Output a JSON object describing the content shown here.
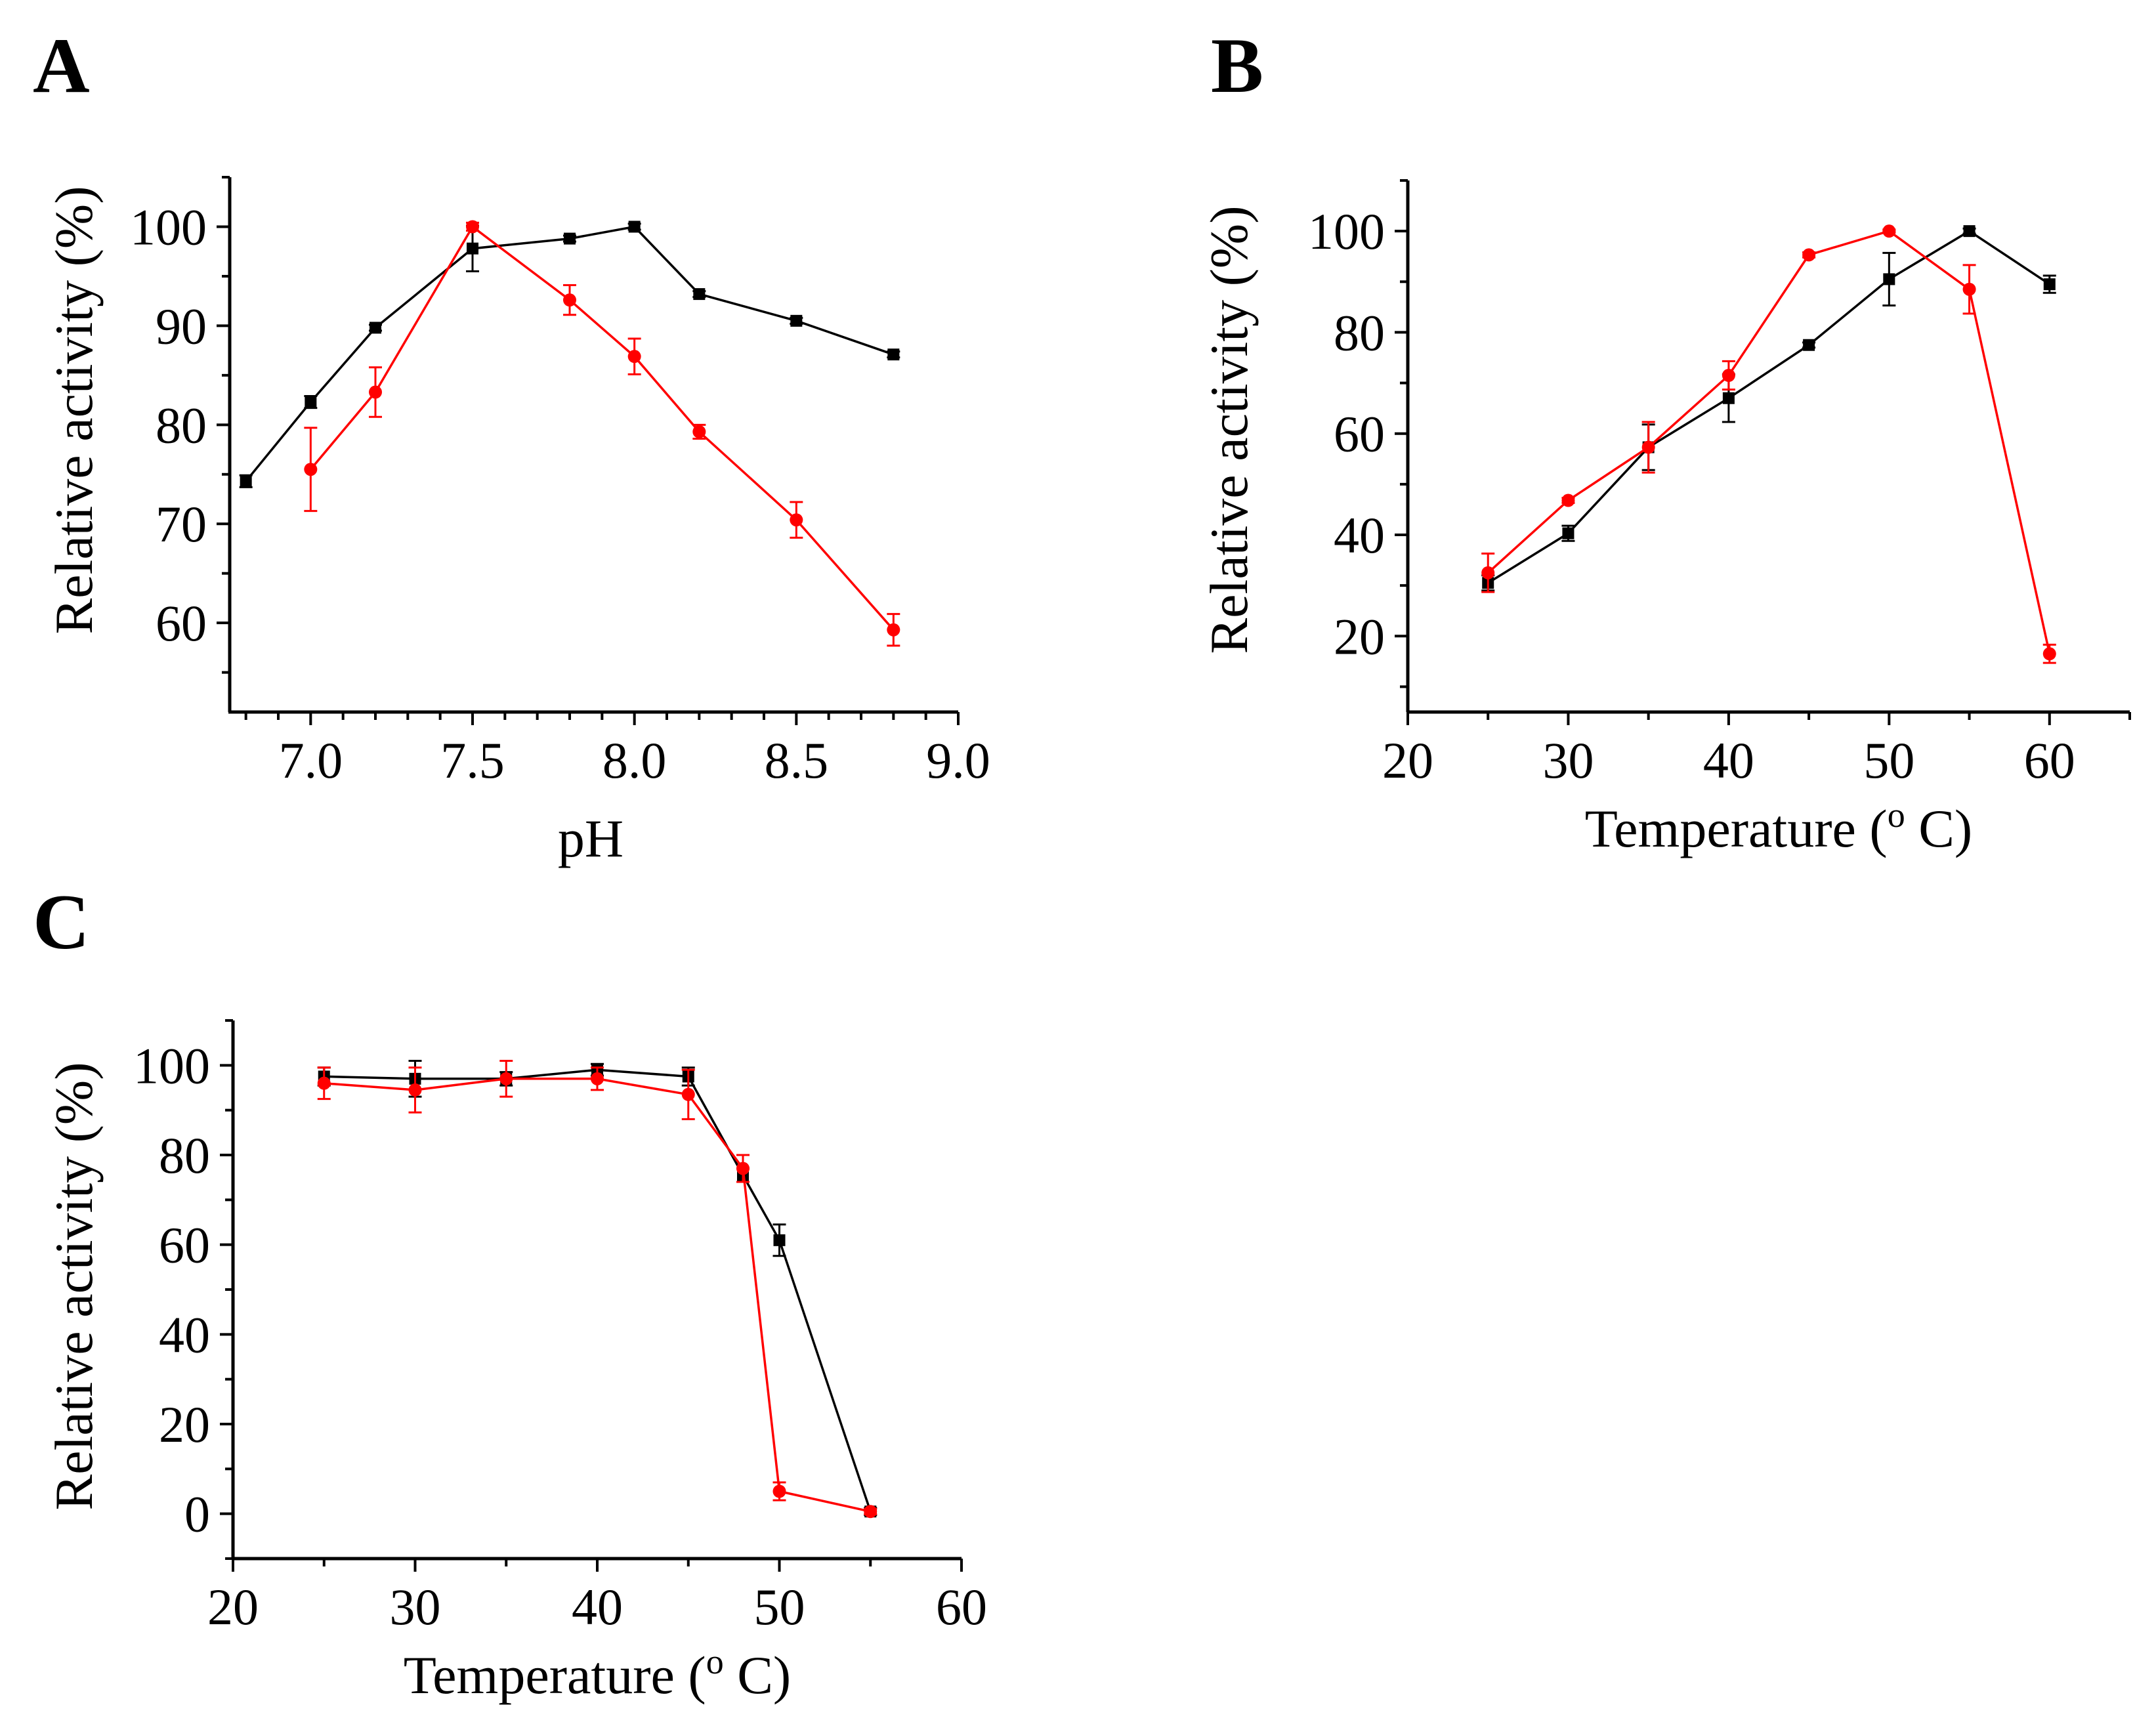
{
  "colors": {
    "black_series": "#000000",
    "red_series": "#ff0000",
    "axis": "#000000"
  },
  "chart_data": [
    {
      "panel": "A",
      "type": "line",
      "xlabel": "pH",
      "ylabel": "Relative activity (%)",
      "xlim": [
        6.75,
        9.0
      ],
      "ylim": [
        51,
        105
      ],
      "xticks": [
        7.0,
        7.5,
        8.0,
        8.5,
        9.0
      ],
      "xtick_labels": [
        "7.0",
        "7.5",
        "8.0",
        "8.5",
        "9.0"
      ],
      "yticks": [
        60,
        70,
        80,
        90,
        100
      ],
      "ytick_labels": [
        "60",
        "70",
        "80",
        "90",
        "100"
      ],
      "series": [
        {
          "color": "#000000",
          "marker": "square",
          "x": [
            6.8,
            7.0,
            7.2,
            7.5,
            7.8,
            8.0,
            8.2,
            8.5,
            8.8
          ],
          "y": [
            74.3,
            82.3,
            89.8,
            97.8,
            98.8,
            100,
            93.2,
            90.5,
            87.1
          ],
          "err": [
            0.6,
            0.6,
            0.3,
            2.3,
            0.3,
            0.3,
            0.3,
            0.3,
            0.3
          ]
        },
        {
          "color": "#ff0000",
          "marker": "circle",
          "x": [
            7.0,
            7.2,
            7.5,
            7.8,
            8.0,
            8.2,
            8.5,
            8.8
          ],
          "y": [
            75.5,
            83.3,
            100,
            92.6,
            86.9,
            79.3,
            70.4,
            59.3
          ],
          "err": [
            4.2,
            2.5,
            0.4,
            1.5,
            1.8,
            0.7,
            1.8,
            1.6
          ]
        }
      ]
    },
    {
      "panel": "B",
      "type": "line",
      "xlabel": "Temperature (o C)",
      "xlabel_main": "Temperature (",
      "xlabel_sup": "o",
      "xlabel_tail": " C)",
      "ylabel": "Relative activity (%)",
      "xlim": [
        20,
        65
      ],
      "ylim": [
        5,
        110
      ],
      "xticks": [
        20,
        30,
        40,
        50,
        60
      ],
      "xtick_labels": [
        "20",
        "30",
        "40",
        "50",
        "60"
      ],
      "yticks": [
        20,
        40,
        60,
        80,
        100
      ],
      "ytick_labels": [
        "20",
        "40",
        "60",
        "80",
        "100"
      ],
      "series": [
        {
          "color": "#000000",
          "marker": "square",
          "x": [
            25,
            30,
            35,
            40,
            45,
            50,
            55,
            60
          ],
          "y": [
            30.5,
            40.3,
            57.3,
            67,
            77.5,
            90.5,
            100,
            89.5
          ],
          "err": [
            1.5,
            1.5,
            4.5,
            4.7,
            0.5,
            5.2,
            0.5,
            1.7
          ]
        },
        {
          "color": "#ff0000",
          "marker": "circle",
          "x": [
            25,
            30,
            35,
            40,
            45,
            50,
            55,
            60
          ],
          "y": [
            32.5,
            46.8,
            57.3,
            71.5,
            95.3,
            100,
            88.5,
            16.5
          ],
          "err": [
            3.8,
            0.5,
            5.0,
            2.8,
            0.5,
            0.3,
            4.8,
            1.8
          ]
        }
      ]
    },
    {
      "panel": "C",
      "type": "line",
      "xlabel": "Temperature (o C)",
      "xlabel_main": "Temperature (",
      "xlabel_sup": "o",
      "xlabel_tail": " C)",
      "ylabel": "Relative activity (%)",
      "xlim": [
        20,
        60
      ],
      "ylim": [
        -10,
        110
      ],
      "xticks": [
        20,
        30,
        40,
        50,
        60
      ],
      "xtick_labels": [
        "20",
        "30",
        "40",
        "50",
        "60"
      ],
      "yticks": [
        0,
        20,
        40,
        60,
        80,
        100
      ],
      "ytick_labels": [
        "0",
        "20",
        "40",
        "60",
        "80",
        "100"
      ],
      "series": [
        {
          "color": "#000000",
          "marker": "square",
          "x": [
            25,
            30,
            35,
            40,
            45,
            48,
            50,
            55
          ],
          "y": [
            97.5,
            97,
            97,
            99,
            97.5,
            75.5,
            61,
            0.5
          ],
          "err": [
            2.0,
            4.0,
            1.5,
            1.3,
            2.0,
            1.5,
            3.5,
            0.8
          ]
        },
        {
          "color": "#ff0000",
          "marker": "circle",
          "x": [
            25,
            30,
            35,
            40,
            45,
            48,
            50,
            55
          ],
          "y": [
            96,
            94.5,
            97,
            97,
            93.5,
            77,
            5,
            0.5
          ],
          "err": [
            3.5,
            5.0,
            4.0,
            2.5,
            5.5,
            3.0,
            2.0,
            0.6
          ]
        }
      ]
    }
  ]
}
